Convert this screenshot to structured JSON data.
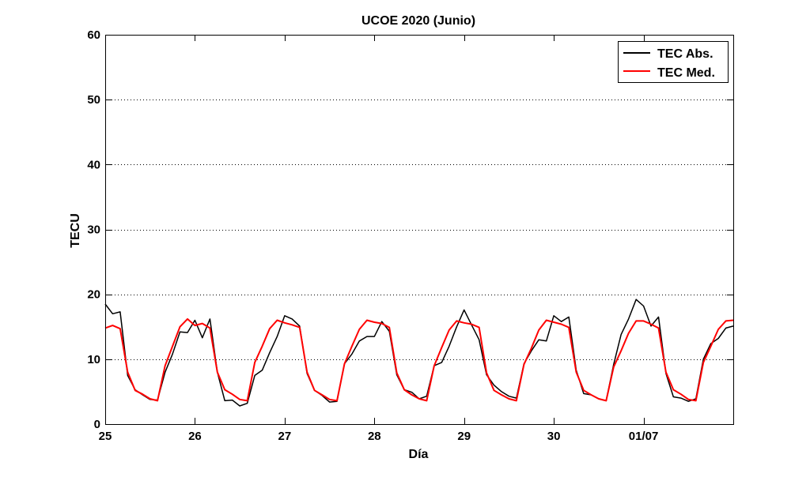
{
  "chart_data": {
    "type": "line",
    "title": "UCOE 2020 (Junio)",
    "xlabel": "Día",
    "ylabel": "TECU",
    "xlim": [
      25,
      32
    ],
    "ylim": [
      0,
      60
    ],
    "x_ticks": [
      {
        "value": 25,
        "label": "25"
      },
      {
        "value": 26,
        "label": "26"
      },
      {
        "value": 27,
        "label": "27"
      },
      {
        "value": 28,
        "label": "28"
      },
      {
        "value": 29,
        "label": "29"
      },
      {
        "value": 30,
        "label": "30"
      },
      {
        "value": 31,
        "label": "01/07"
      }
    ],
    "y_ticks": [
      0,
      10,
      20,
      30,
      40,
      50,
      60
    ],
    "grid": "y-dotted",
    "legend": "top-right",
    "series": [
      {
        "name": "TEC Abs.",
        "color": "#000000",
        "x": [
          25.0,
          25.083,
          25.167,
          25.25,
          25.333,
          25.417,
          25.5,
          25.583,
          25.667,
          25.75,
          25.833,
          25.917,
          26.0,
          26.083,
          26.167,
          26.25,
          26.333,
          26.417,
          26.5,
          26.583,
          26.667,
          26.75,
          26.833,
          26.917,
          27.0,
          27.083,
          27.167,
          27.25,
          27.333,
          27.417,
          27.5,
          27.583,
          27.667,
          27.75,
          27.833,
          27.917,
          28.0,
          28.083,
          28.167,
          28.25,
          28.333,
          28.417,
          28.5,
          28.583,
          28.667,
          28.75,
          28.833,
          28.917,
          29.0,
          29.083,
          29.167,
          29.25,
          29.333,
          29.417,
          29.5,
          29.583,
          29.667,
          29.75,
          29.833,
          29.917,
          30.0,
          30.083,
          30.167,
          30.25,
          30.333,
          30.417,
          30.5,
          30.583,
          30.667,
          30.75,
          30.833,
          30.917,
          31.0,
          31.083,
          31.167,
          31.25,
          31.333,
          31.417,
          31.5,
          31.583,
          31.667,
          31.75,
          31.833,
          31.917,
          32.0
        ],
        "values": [
          18.5,
          17.0,
          17.3,
          7.5,
          5.3,
          4.5,
          3.8,
          3.7,
          8.0,
          10.8,
          14.2,
          14.1,
          16.0,
          13.3,
          16.2,
          8.0,
          3.6,
          3.7,
          2.8,
          3.2,
          7.5,
          8.3,
          11.0,
          13.5,
          16.7,
          16.2,
          15.1,
          7.8,
          5.2,
          4.4,
          3.4,
          3.5,
          9.3,
          10.8,
          12.8,
          13.5,
          13.5,
          15.8,
          14.3,
          7.6,
          5.3,
          4.9,
          3.9,
          4.3,
          9.0,
          9.5,
          12.0,
          15.0,
          17.6,
          15.3,
          13.0,
          7.6,
          6.0,
          5.0,
          4.3,
          4.0,
          9.3,
          11.3,
          13.0,
          12.8,
          16.7,
          15.8,
          16.5,
          8.3,
          4.7,
          4.5,
          3.9,
          3.6,
          9.2,
          13.8,
          16.2,
          19.2,
          18.2,
          15.1,
          16.5,
          7.8,
          4.2,
          4.0,
          3.5,
          3.9,
          10.0,
          12.4,
          13.2,
          14.8,
          15.1
        ]
      },
      {
        "name": "TEC Med.",
        "color": "#ff0000",
        "x": [
          25.0,
          25.083,
          25.167,
          25.25,
          25.333,
          25.417,
          25.5,
          25.583,
          25.667,
          25.75,
          25.833,
          25.917,
          26.0,
          26.083,
          26.167,
          26.25,
          26.333,
          26.417,
          26.5,
          26.583,
          26.667,
          26.75,
          26.833,
          26.917,
          27.0,
          27.083,
          27.167,
          27.25,
          27.333,
          27.417,
          27.5,
          27.583,
          27.667,
          27.75,
          27.833,
          27.917,
          28.0,
          28.083,
          28.167,
          28.25,
          28.333,
          28.417,
          28.5,
          28.583,
          28.667,
          28.75,
          28.833,
          28.917,
          29.0,
          29.083,
          29.167,
          29.25,
          29.333,
          29.417,
          29.5,
          29.583,
          29.667,
          29.75,
          29.833,
          29.917,
          30.0,
          30.083,
          30.167,
          30.25,
          30.333,
          30.417,
          30.5,
          30.583,
          30.667,
          30.75,
          30.833,
          30.917,
          31.0,
          31.083,
          31.167,
          31.25,
          31.333,
          31.417,
          31.5,
          31.583,
          31.667,
          31.75,
          31.833,
          31.917,
          32.0
        ],
        "values": [
          14.8,
          15.2,
          14.7,
          8.0,
          5.2,
          4.6,
          3.9,
          3.6,
          9.0,
          12.0,
          15.0,
          16.2,
          15.2,
          15.5,
          14.8,
          8.0,
          5.3,
          4.6,
          3.8,
          3.6,
          9.5,
          12.0,
          14.7,
          16.0,
          15.6,
          15.3,
          14.9,
          8.0,
          5.2,
          4.5,
          3.8,
          3.6,
          9.3,
          12.0,
          14.6,
          16.0,
          15.7,
          15.5,
          14.9,
          7.9,
          5.3,
          4.5,
          3.9,
          3.6,
          9.0,
          11.8,
          14.5,
          15.9,
          15.6,
          15.4,
          14.9,
          7.9,
          5.2,
          4.5,
          3.9,
          3.6,
          9.2,
          11.7,
          14.5,
          16.0,
          15.7,
          15.4,
          14.9,
          8.0,
          5.2,
          4.5,
          3.9,
          3.6,
          8.8,
          11.3,
          14.0,
          15.9,
          15.9,
          15.4,
          14.8,
          8.0,
          5.3,
          4.6,
          3.8,
          3.6,
          9.5,
          12.0,
          14.6,
          15.9,
          16.0
        ]
      }
    ]
  }
}
